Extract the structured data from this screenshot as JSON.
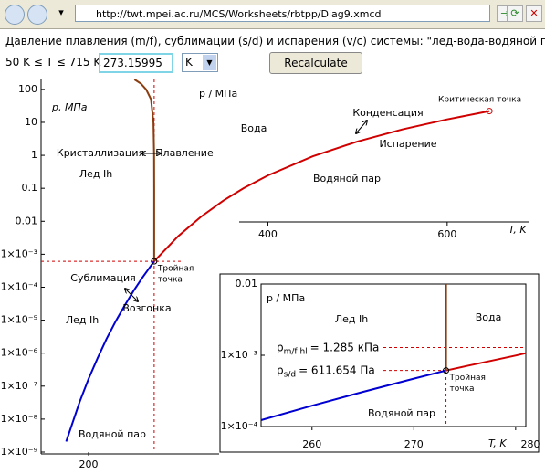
{
  "browser": {
    "url": "http://twt.mpei.ac.ru/MCS/Worksheets/rbtpp/Diag9.xmcd"
  },
  "form": {
    "heading": "Давление плавления (m/f), сублимации (s/d) и испарения (v/c) системы: \"лед-вода-водяной пар\"",
    "range": "50 K ≤ T ≤ 715 K",
    "temperature": "273.15995",
    "unit": "K",
    "button": "Recalculate"
  },
  "chart_data": [
    {
      "type": "line",
      "y_label": "p, МПа",
      "y_label2": "p / МПа",
      "x_label": "T, K",
      "log_y": true,
      "xlim": [
        147,
        702
      ],
      "ylim": [
        1e-09,
        200
      ],
      "xticks": [
        200,
        400,
        600
      ],
      "yticks": [
        100,
        10,
        1,
        0.1,
        0.01,
        {
          "value": 0.001,
          "label": "1×10⁻³"
        },
        {
          "value": 0.0001,
          "label": "1×10⁻⁴"
        },
        {
          "value": 1e-05,
          "label": "1×10⁻⁵"
        },
        {
          "value": 1e-06,
          "label": "1×10⁻⁶"
        },
        {
          "value": 1e-07,
          "label": "1×10⁻⁷"
        },
        {
          "value": 1e-08,
          "label": "1×10⁻⁸"
        },
        {
          "value": 1e-09,
          "label": "1×10⁻⁹"
        }
      ],
      "series": [
        {
          "color": "#0000d0",
          "x": [
            175,
            190,
            200,
            210,
            220,
            230,
            240,
            250,
            260,
            273.16
          ],
          "values": [
            2.1e-09,
            3.3e-08,
            1.65e-07,
            7.1e-07,
            2.7e-06,
            9e-06,
            2.7e-05,
            7.6e-05,
            0.000196,
            0.000611654
          ]
        },
        {
          "color": "#d00000",
          "x": [
            273.16,
            300,
            325,
            350,
            373.12,
            400,
            450,
            500,
            550,
            600,
            647.1
          ],
          "values": [
            0.000611654,
            0.00354,
            0.0135,
            0.0417,
            0.1013,
            0.2458,
            0.932,
            2.639,
            6.12,
            12.34,
            22.064
          ]
        },
        {
          "color": "#8b3d10",
          "x": [
            273.16,
            273.16,
            273.15,
            273.08,
            272.4,
            269.6,
            264.2,
            258.3,
            251.2
          ],
          "values": [
            0.000611654,
            0.01,
            0.1,
            1,
            10,
            50,
            100,
            150,
            200
          ]
        }
      ],
      "triple_point": {
        "x": 273.16,
        "y": 0.000611654
      },
      "triple_label": [
        "Тройная",
        "точка"
      ],
      "critical_point": {
        "x": 647.1,
        "y": 22.064,
        "label": "Критическая точка"
      },
      "annotations": [
        "Вода",
        "Лед Ih",
        "Водяной пар",
        "Кристаллизация",
        "Плавление",
        "Конденсация",
        "Испарение",
        "Сублимация",
        "Возгонка",
        "Лед Ih",
        "Водяной пар"
      ]
    },
    {
      "type": "line",
      "y_label": "p / МПа",
      "x_label": "T, K",
      "log_y": true,
      "xlim": [
        255,
        281
      ],
      "ylim": [
        0.0001,
        0.01
      ],
      "xticks": [
        260,
        270,
        280
      ],
      "yticks": [
        0.01,
        {
          "value": 0.001,
          "label": "1×10⁻³"
        },
        {
          "value": 0.0001,
          "label": "1×10⁻⁴"
        }
      ],
      "series": [
        {
          "color": "#0000d0",
          "x": [
            255,
            260,
            265,
            270,
            273.16
          ],
          "values": [
            0.000123,
            0.000196,
            0.000306,
            0.00047,
            0.000611654
          ]
        },
        {
          "color": "#d00000",
          "x": [
            273.16,
            275,
            280,
            281
          ],
          "values": [
            0.000611654,
            0.000698,
            0.00099,
            0.00107
          ]
        },
        {
          "color": "#8b3d10",
          "x": [
            273.16,
            273.16
          ],
          "values": [
            0.000611654,
            0.01
          ]
        }
      ],
      "triple_point": {
        "x": 273.16,
        "y": 0.000611654
      },
      "triple_label": [
        "Тройная",
        "точка"
      ],
      "reference_lines": [
        {
          "symbol": "p",
          "subscript": "m/f hl",
          "text": "= 1.285 кПа",
          "value": 0.001285
        },
        {
          "symbol": "p",
          "subscript": "s/d",
          "text": "= 611.654 Па",
          "value": 0.000611654
        }
      ],
      "annotations": [
        "Лед Ih",
        "Вода",
        "Водяной пар"
      ]
    }
  ]
}
